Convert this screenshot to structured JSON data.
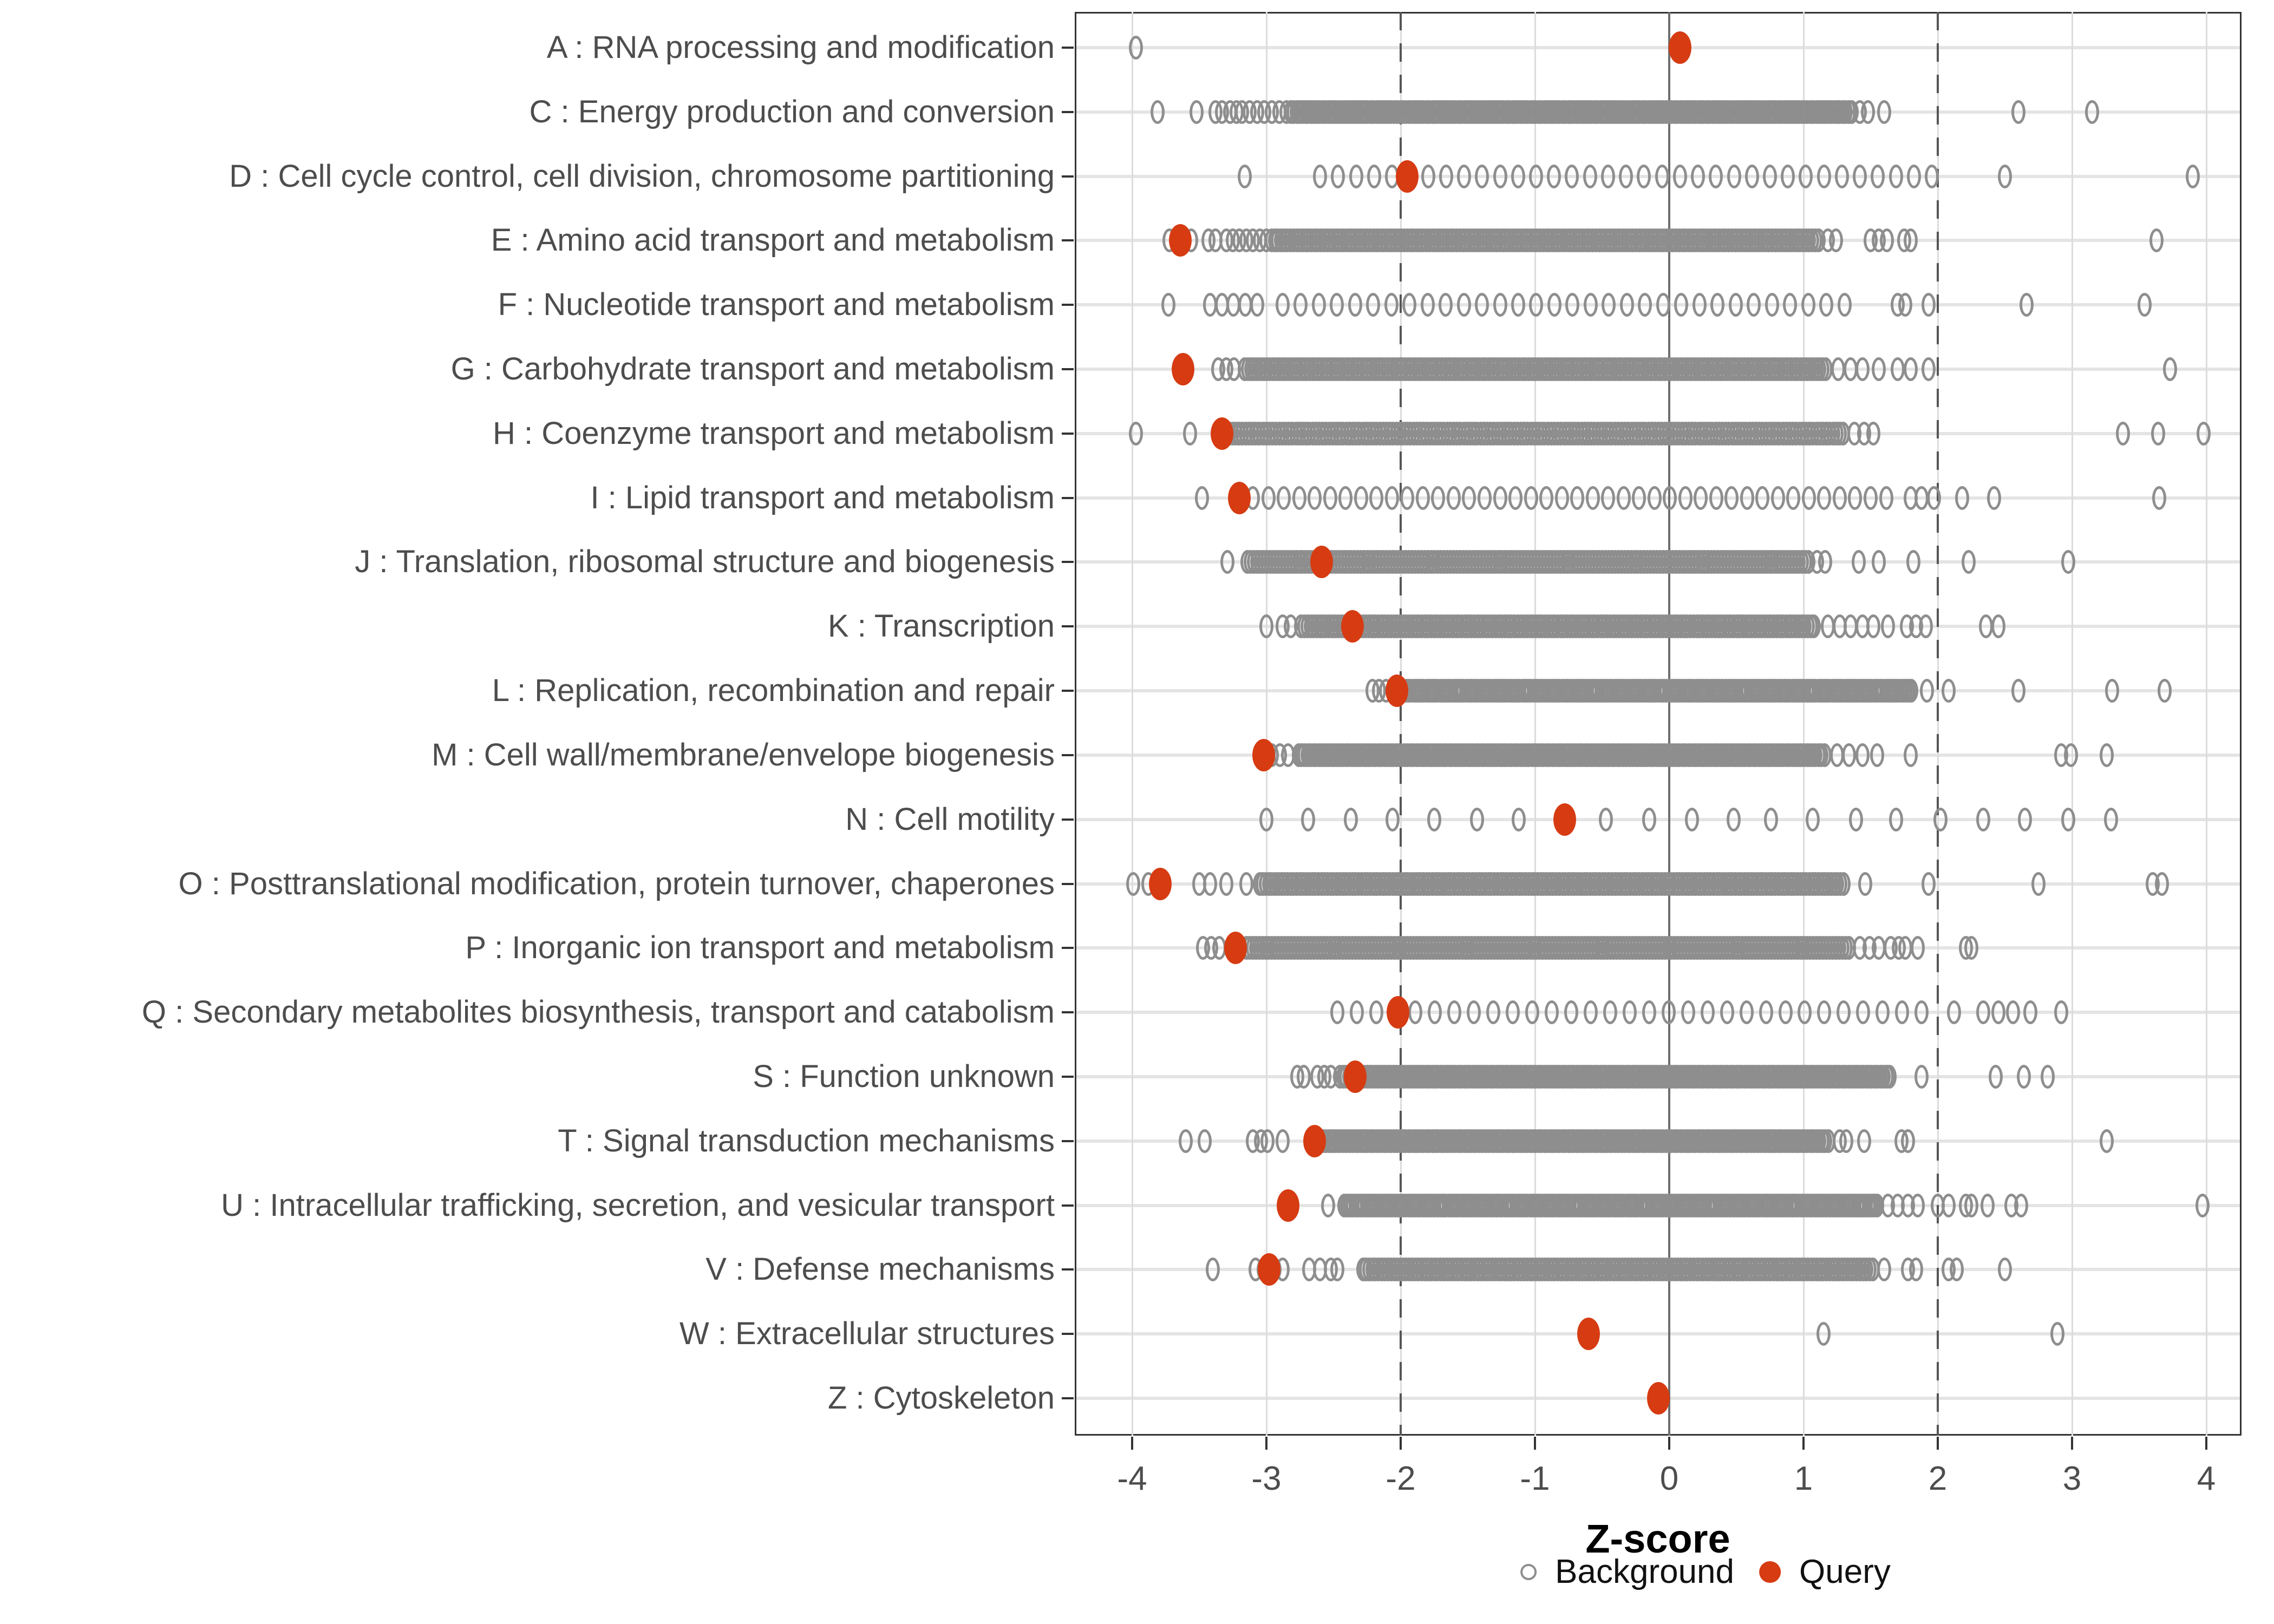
{
  "chart_data": {
    "type": "scatter",
    "title": "",
    "xlabel": "Z-score",
    "xlim": [
      -4.4,
      4.3
    ],
    "x_ticks": [
      -4,
      -3,
      -2,
      -1,
      0,
      1,
      2,
      3,
      4
    ],
    "grid": "vertical gridlines at each integer; light horizontal gridline per category row",
    "reference_lines": {
      "solid_at": 0,
      "dashed_at": [
        -2,
        2
      ]
    },
    "legend_position": "bottom-center",
    "legend": [
      {
        "label": "Background",
        "marker": "open-circle",
        "color": "#8e8e8e"
      },
      {
        "label": "Query",
        "marker": "filled-circle",
        "color": "#d63b12"
      }
    ],
    "colors": {
      "query_fill": "#d63b12",
      "background_stroke": "#8e8e8e",
      "axis_text": "#4d4d4d",
      "grid_major": "#dcdcdc",
      "grid_row": "#e4e4e4",
      "zero_line": "#6e6e6e",
      "threshold_line": "#565656",
      "panel_border": "#333333",
      "legend_text": "#111111"
    },
    "categories": [
      {
        "code": "A",
        "label": "A : RNA processing and modification",
        "query": 0.08,
        "bg_points": [
          -3.97
        ],
        "bg_segments": []
      },
      {
        "code": "C",
        "label": "C : Energy production and conversion",
        "query": null,
        "bg_points": [
          -3.81,
          -3.52,
          -3.38,
          -3.33,
          -3.27,
          -3.22,
          1.42,
          1.48,
          1.6,
          2.6,
          3.15
        ],
        "bg_segments": [
          [
            -3.18,
            -2.85,
            0.055
          ],
          [
            -2.82,
            1.36,
            0.022
          ]
        ]
      },
      {
        "code": "D",
        "label": "D : Cell cycle control, cell division, chromosome partitioning",
        "query": -1.95,
        "bg_points": [
          -3.16,
          2.5,
          3.9
        ],
        "bg_segments": [
          [
            -2.6,
            2.08,
            0.134
          ]
        ]
      },
      {
        "code": "E",
        "label": "E : Amino acid transport and metabolism",
        "query": -3.64,
        "bg_points": [
          -3.72,
          -3.56,
          -3.43,
          -3.38,
          1.18,
          1.24,
          1.5,
          1.56,
          1.62,
          1.75,
          1.8,
          3.63
        ],
        "bg_segments": [
          [
            -3.3,
            -3.0,
            0.05
          ],
          [
            -2.96,
            1.12,
            0.023
          ]
        ]
      },
      {
        "code": "F",
        "label": "F : Nucleotide transport and metabolism",
        "query": null,
        "bg_points": [
          -3.73,
          1.7,
          1.76,
          1.93,
          2.66,
          3.54
        ],
        "bg_segments": [
          [
            -3.42,
            -3.07,
            0.0875
          ],
          [
            -2.88,
            1.39,
            0.135
          ]
        ]
      },
      {
        "code": "G",
        "label": "G : Carbohydrate transport and metabolism",
        "query": -3.62,
        "bg_points": [
          -3.36,
          -3.3,
          -3.24,
          1.26,
          1.35,
          1.44,
          1.56,
          1.7,
          1.8,
          1.93,
          3.73
        ],
        "bg_segments": [
          [
            -3.16,
            1.18,
            0.023
          ]
        ]
      },
      {
        "code": "H",
        "label": "H : Coenzyme transport and metabolism",
        "query": -3.33,
        "bg_points": [
          -3.97,
          -3.57,
          1.38,
          1.45,
          1.52,
          3.38,
          3.64,
          3.98
        ],
        "bg_segments": [
          [
            -3.28,
            1.3,
            0.025
          ]
        ]
      },
      {
        "code": "I",
        "label": "I : Lipid transport and metabolism",
        "query": -3.2,
        "bg_points": [
          -3.48,
          1.8,
          1.88,
          1.97,
          2.18,
          2.42,
          3.65
        ],
        "bg_segments": [
          [
            -3.1,
            1.72,
            0.115
          ]
        ]
      },
      {
        "code": "J",
        "label": "J : Translation, ribosomal structure and biogenesis",
        "query": -2.59,
        "bg_points": [
          -3.29,
          1.1,
          1.16,
          1.41,
          1.56,
          1.82,
          2.23,
          2.97
        ],
        "bg_segments": [
          [
            -3.14,
            1.04,
            0.024
          ]
        ]
      },
      {
        "code": "K",
        "label": "K : Transcription",
        "query": -2.36,
        "bg_points": [
          -3.0,
          -2.88,
          -2.82,
          1.18,
          1.27,
          1.35,
          1.44,
          1.52,
          1.63,
          1.77,
          1.84,
          1.91,
          2.36,
          2.45
        ],
        "bg_segments": [
          [
            -2.74,
            1.1,
            0.023
          ]
        ]
      },
      {
        "code": "L",
        "label": "L : Replication, recombination and repair",
        "query": -2.03,
        "bg_points": [
          -2.21,
          -2.16,
          -2.11,
          1.92,
          2.08,
          2.6,
          3.3,
          3.69
        ],
        "bg_segments": [
          [
            -2.06,
            1.82,
            0.021
          ]
        ]
      },
      {
        "code": "M",
        "label": "M : Cell wall/membrane/envelope biogenesis",
        "query": -3.02,
        "bg_points": [
          -2.96,
          -2.9,
          -2.84,
          1.25,
          1.34,
          1.44,
          1.55,
          1.8,
          2.92,
          2.99,
          3.26
        ],
        "bg_segments": [
          [
            -2.76,
            1.16,
            0.022
          ]
        ]
      },
      {
        "code": "N",
        "label": "N : Cell motility",
        "query": -0.78,
        "bg_points": [
          -3.0,
          -2.69,
          -2.37,
          -2.06,
          -1.75,
          -1.43,
          -1.12,
          -0.47,
          -0.15,
          0.17,
          0.48,
          0.76,
          1.07,
          1.39,
          1.69,
          2.02,
          2.34,
          2.65,
          2.97,
          3.29
        ],
        "bg_segments": []
      },
      {
        "code": "O",
        "label": "O : Posttranslational modification, protein turnover, chaperones",
        "query": -3.79,
        "bg_points": [
          -3.99,
          -3.88,
          -3.5,
          -3.42,
          -3.3,
          -3.15,
          1.46,
          1.93,
          2.75,
          3.6,
          3.67
        ],
        "bg_segments": [
          [
            -3.05,
            1.3,
            0.023
          ]
        ]
      },
      {
        "code": "P",
        "label": "P : Inorganic ion transport and metabolism",
        "query": -3.23,
        "bg_points": [
          -3.47,
          -3.41,
          -3.35,
          1.42,
          1.49,
          1.56,
          1.65,
          1.71,
          1.76,
          1.85,
          2.21,
          2.25
        ],
        "bg_segments": [
          [
            -3.15,
            1.34,
            0.024
          ]
        ]
      },
      {
        "code": "Q",
        "label": "Q : Secondary metabolites biosynthesis, transport and catabolism",
        "query": -2.02,
        "bg_points": [
          2.12,
          2.34,
          2.45,
          2.56,
          2.69,
          2.92
        ],
        "bg_segments": [
          [
            -2.47,
            2.0,
            0.145
          ]
        ]
      },
      {
        "code": "S",
        "label": "S : Function unknown",
        "query": -2.34,
        "bg_points": [
          -2.77,
          -2.72,
          -2.62,
          -2.57,
          -2.52,
          1.88,
          2.43,
          2.64,
          2.82
        ],
        "bg_segments": [
          [
            -2.45,
            1.66,
            0.022
          ]
        ]
      },
      {
        "code": "T",
        "label": "T : Signal transduction mechanisms",
        "query": -2.64,
        "bg_points": [
          -3.6,
          -3.46,
          -3.1,
          -3.04,
          -2.99,
          -2.88,
          1.27,
          1.32,
          1.45,
          1.73,
          1.78,
          3.26
        ],
        "bg_segments": [
          [
            -2.6,
            1.19,
            0.022
          ]
        ]
      },
      {
        "code": "U",
        "label": "U : Intracellular trafficking, secretion, and vesicular transport",
        "query": -2.84,
        "bg_points": [
          -2.54,
          1.63,
          1.7,
          1.78,
          1.85,
          2.0,
          2.08,
          2.21,
          2.25,
          2.37,
          2.55,
          2.62,
          3.97
        ],
        "bg_segments": [
          [
            -2.42,
            1.56,
            0.021
          ]
        ]
      },
      {
        "code": "V",
        "label": "V : Defense mechanisms",
        "query": -2.98,
        "bg_points": [
          -3.4,
          -3.08,
          -3.02,
          -2.94,
          -2.88,
          -2.68,
          -2.6,
          -2.52,
          -2.47,
          1.6,
          1.78,
          1.84,
          2.08,
          2.14,
          2.5
        ],
        "bg_segments": [
          [
            -2.28,
            1.52,
            0.023
          ]
        ]
      },
      {
        "code": "W",
        "label": "W : Extracellular structures",
        "query": -0.6,
        "bg_points": [
          1.15,
          2.89
        ],
        "bg_segments": []
      },
      {
        "code": "Z",
        "label": "Z : Cytoskeleton",
        "query": -0.08,
        "bg_points": [],
        "bg_segments": []
      }
    ]
  }
}
